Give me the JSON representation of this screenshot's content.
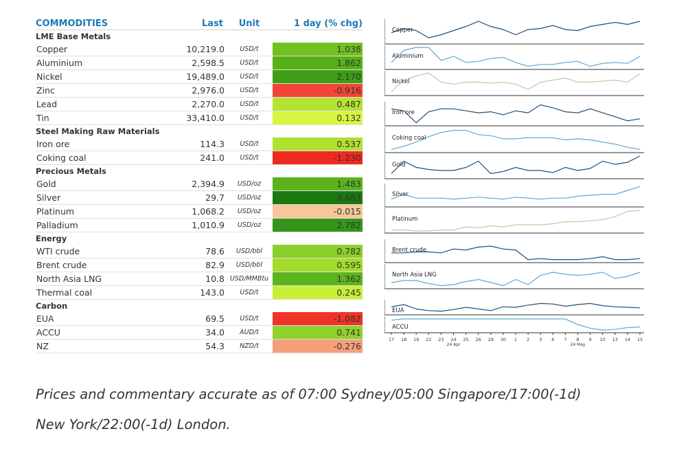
{
  "table": {
    "headers": {
      "name": "COMMODITIES",
      "last": "Last",
      "unit": "Unit",
      "chg": "1 day (% chg)"
    },
    "sections": [
      {
        "title": "LME Base Metals",
        "rows": [
          {
            "name": "Copper",
            "last": "10,219.0",
            "unit": "USD/t",
            "chg": "1.038",
            "color": "#70c020"
          },
          {
            "name": "Aluminium",
            "last": "2,598.5",
            "unit": "USD/t",
            "chg": "1.862",
            "color": "#58b018"
          },
          {
            "name": "Nickel",
            "last": "19,489.0",
            "unit": "USD/t",
            "chg": "2.170",
            "color": "#3d9e14"
          },
          {
            "name": "Zinc",
            "last": "2,976.0",
            "unit": "USD/t",
            "chg": "-0.916",
            "color": "#f24535"
          },
          {
            "name": "Lead",
            "last": "2,270.0",
            "unit": "USD/t",
            "chg": "0.487",
            "color": "#b4e233"
          },
          {
            "name": "Tin",
            "last": "33,410.0",
            "unit": "USD/t",
            "chg": "0.132",
            "color": "#d9f542"
          }
        ]
      },
      {
        "title": "Steel Making Raw Materials",
        "rows": [
          {
            "name": "Iron ore",
            "last": "114.3",
            "unit": "USD/t",
            "chg": "0.537",
            "color": "#b0e030"
          },
          {
            "name": "Coking coal",
            "last": "241.0",
            "unit": "USD/t",
            "chg": "-1.230",
            "color": "#ee2a1f"
          }
        ]
      },
      {
        "title": "Precious Metals",
        "rows": [
          {
            "name": "Gold",
            "last": "2,394.9",
            "unit": "USD/oz",
            "chg": "1.483",
            "color": "#5ab31c"
          },
          {
            "name": "Silver",
            "last": "29.7",
            "unit": "USD/oz",
            "chg": "3.683",
            "color": "#1a7a10"
          },
          {
            "name": "Platinum",
            "last": "1,068.2",
            "unit": "USD/oz",
            "chg": "-0.015",
            "color": "#f7c79a"
          },
          {
            "name": "Palladium",
            "last": "1,010.9",
            "unit": "USD/oz",
            "chg": "2.782",
            "color": "#34951a"
          }
        ]
      },
      {
        "title": "Energy",
        "rows": [
          {
            "name": "WTI crude",
            "last": "78.6",
            "unit": "USD/bbl",
            "chg": "0.782",
            "color": "#8bd02a"
          },
          {
            "name": "Brent crude",
            "last": "82.9",
            "unit": "USD/bbl",
            "chg": "0.595",
            "color": "#a4dc2e"
          },
          {
            "name": "North Asia LNG",
            "last": "10.8",
            "unit": "USD/MMBtu",
            "chg": "1.362",
            "color": "#5cb41c"
          },
          {
            "name": "Thermal coal",
            "last": "143.0",
            "unit": "USD/t",
            "chg": "0.245",
            "color": "#c8ef38"
          }
        ]
      },
      {
        "title": "Carbon",
        "rows": [
          {
            "name": "EUA",
            "last": "69.5",
            "unit": "USD/t",
            "chg": "-1.082",
            "color": "#ef3326"
          },
          {
            "name": "ACCU",
            "last": "34.0",
            "unit": "AUD/t",
            "chg": "0.741",
            "color": "#8fd22b"
          },
          {
            "name": "NZ",
            "last": "54.3",
            "unit": "NZD/t",
            "chg": "-0.276",
            "color": "#f5a07a"
          }
        ]
      }
    ]
  },
  "chart_data": {
    "type": "line",
    "x": [
      "17",
      "18",
      "19",
      "22",
      "23",
      "24",
      "25",
      "26",
      "29",
      "30",
      "1",
      "2",
      "3",
      "6",
      "7",
      "8",
      "9",
      "10",
      "13",
      "14",
      "15"
    ],
    "month_labels": [
      {
        "index": 5,
        "label": "24 Apr"
      },
      {
        "index": 15,
        "label": "24 May"
      }
    ],
    "series": [
      {
        "name": "Copper",
        "color": "#1f4e79",
        "values": [
          0.45,
          0.65,
          0.55,
          0.2,
          0.35,
          0.55,
          0.75,
          1.0,
          0.75,
          0.6,
          0.35,
          0.6,
          0.65,
          0.8,
          0.6,
          0.55,
          0.75,
          0.85,
          0.95,
          0.85,
          1.0
        ]
      },
      {
        "name": "Aluminium",
        "color": "#5aa9d6",
        "values": [
          0.25,
          0.85,
          1.0,
          1.0,
          0.35,
          0.55,
          0.25,
          0.3,
          0.45,
          0.5,
          0.25,
          0.05,
          0.15,
          0.15,
          0.25,
          0.3,
          0.05,
          0.2,
          0.25,
          0.2,
          0.55
        ]
      },
      {
        "name": "Nickel",
        "color": "#c8c6a0",
        "values": [
          0.1,
          0.65,
          0.85,
          1.0,
          0.55,
          0.45,
          0.55,
          0.55,
          0.5,
          0.55,
          0.45,
          0.2,
          0.55,
          0.65,
          0.75,
          0.55,
          0.55,
          0.6,
          0.65,
          0.55,
          0.95
        ]
      },
      {
        "name": "Iron ore",
        "color": "#1f4e79",
        "values": [
          0.75,
          0.65,
          0.05,
          0.6,
          0.75,
          0.75,
          0.65,
          0.55,
          0.6,
          0.45,
          0.65,
          0.55,
          0.95,
          0.8,
          0.6,
          0.55,
          0.75,
          0.55,
          0.35,
          0.15,
          0.25
        ]
      },
      {
        "name": "Coking coal",
        "color": "#5aa9d6",
        "values": [
          0.05,
          0.2,
          0.4,
          0.65,
          0.85,
          0.95,
          0.95,
          0.75,
          0.7,
          0.55,
          0.55,
          0.6,
          0.6,
          0.6,
          0.5,
          0.55,
          0.5,
          0.4,
          0.3,
          0.15,
          0.05
        ]
      },
      {
        "name": "Gold",
        "color": "#1f4e79",
        "values": [
          0.15,
          0.75,
          0.45,
          0.35,
          0.3,
          0.3,
          0.45,
          0.75,
          0.15,
          0.25,
          0.45,
          0.3,
          0.3,
          0.2,
          0.45,
          0.3,
          0.4,
          0.75,
          0.6,
          0.7,
          1.0
        ]
      },
      {
        "name": "Silver",
        "color": "#5aa9d6",
        "values": [
          0.3,
          0.55,
          0.35,
          0.35,
          0.35,
          0.3,
          0.35,
          0.4,
          0.35,
          0.3,
          0.4,
          0.35,
          0.3,
          0.35,
          0.35,
          0.45,
          0.5,
          0.55,
          0.55,
          0.75,
          0.95
        ]
      },
      {
        "name": "Platinum",
        "color": "#c8c6a0",
        "values": [
          0.05,
          0.05,
          0.0,
          0.0,
          0.05,
          0.05,
          0.2,
          0.15,
          0.25,
          0.2,
          0.3,
          0.3,
          0.3,
          0.35,
          0.45,
          0.45,
          0.5,
          0.55,
          0.7,
          0.95,
          1.0
        ]
      },
      {
        "name": "Brent crude",
        "color": "#1f4e79",
        "values": [
          0.4,
          0.4,
          0.45,
          0.45,
          0.4,
          0.6,
          0.55,
          0.7,
          0.75,
          0.6,
          0.55,
          0.05,
          0.1,
          0.05,
          0.05,
          0.05,
          0.1,
          0.2,
          0.05,
          0.05,
          0.1
        ]
      },
      {
        "name": "North Asia LNG",
        "color": "#5aa9d6",
        "values": [
          0.2,
          0.3,
          0.3,
          0.15,
          0.05,
          0.1,
          0.25,
          0.35,
          0.2,
          0.05,
          0.35,
          0.1,
          0.55,
          0.7,
          0.6,
          0.55,
          0.6,
          0.7,
          0.4,
          0.5,
          0.7
        ]
      },
      {
        "name": "EUA",
        "color": "#1f4e79",
        "values": [
          0.55,
          0.75,
          0.35,
          0.2,
          0.15,
          0.3,
          0.5,
          0.35,
          0.2,
          0.55,
          0.5,
          0.7,
          0.85,
          0.8,
          0.6,
          0.75,
          0.85,
          0.65,
          0.55,
          0.5,
          0.45
        ]
      },
      {
        "name": "ACCU",
        "color": "#5aa9d6",
        "values": [
          0.85,
          0.95,
          0.95,
          0.95,
          0.95,
          0.95,
          0.95,
          0.95,
          0.95,
          0.95,
          0.95,
          0.95,
          0.95,
          0.95,
          0.95,
          0.5,
          0.2,
          0.05,
          0.1,
          0.25,
          0.3
        ]
      }
    ]
  },
  "caption": {
    "line1": "Prices and commentary accurate as of 07:00 Sydney/05:00 Singapore/17:00(-1d)",
    "line2": "New York/22:00(-1d) London."
  }
}
